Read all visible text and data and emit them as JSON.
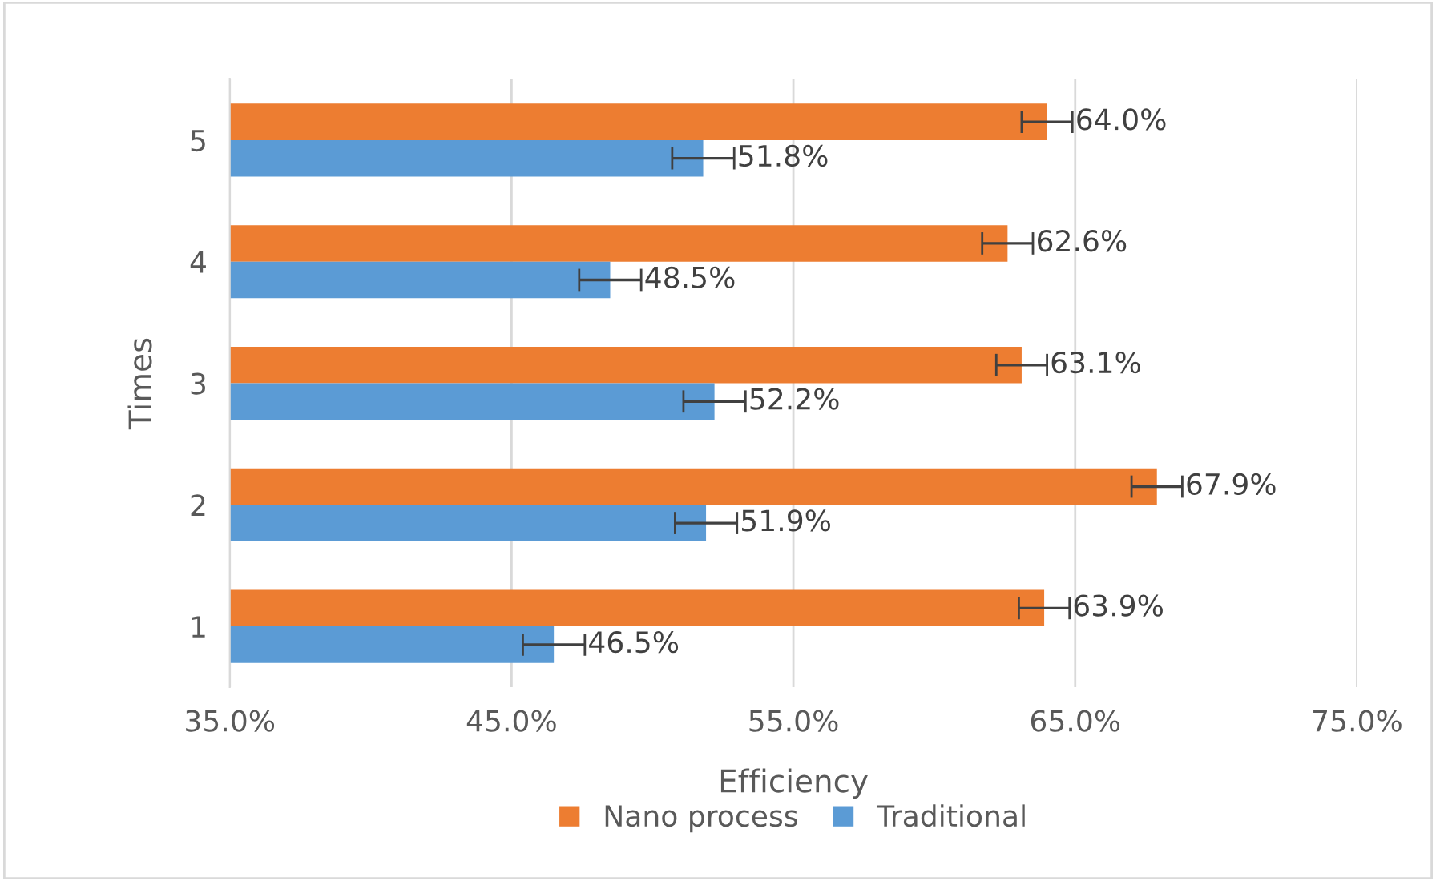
{
  "chart_data": {
    "type": "bar",
    "orientation": "horizontal",
    "xlabel": "Efficiency",
    "ylabel": "Times",
    "categories": [
      "5",
      "4",
      "3",
      "2",
      "1"
    ],
    "series": [
      {
        "name": "Nano process",
        "color": "#ed7d31",
        "values": [
          64.0,
          62.6,
          63.1,
          67.9,
          63.9
        ],
        "errors": [
          0.9,
          0.9,
          0.9,
          0.9,
          0.9
        ],
        "value_labels": [
          "64.0%",
          "62.6%",
          "63.1%",
          "67.9%",
          "63.9%"
        ]
      },
      {
        "name": "Traditional",
        "color": "#5b9bd5",
        "values": [
          51.8,
          48.5,
          52.2,
          51.9,
          46.5
        ],
        "errors": [
          1.1,
          1.1,
          1.1,
          1.1,
          1.1
        ],
        "value_labels": [
          "51.8%",
          "48.5%",
          "52.2%",
          "51.9%",
          "46.5%"
        ]
      }
    ],
    "xlim": [
      35,
      75
    ],
    "xticks": [
      {
        "value": 35,
        "label": "35.0%"
      },
      {
        "value": 45,
        "label": "45.0%"
      },
      {
        "value": 55,
        "label": "55.0%"
      },
      {
        "value": 65,
        "label": "65.0%"
      },
      {
        "value": 75,
        "label": "75.0%"
      }
    ],
    "grid": "x",
    "legend": "bottom"
  }
}
